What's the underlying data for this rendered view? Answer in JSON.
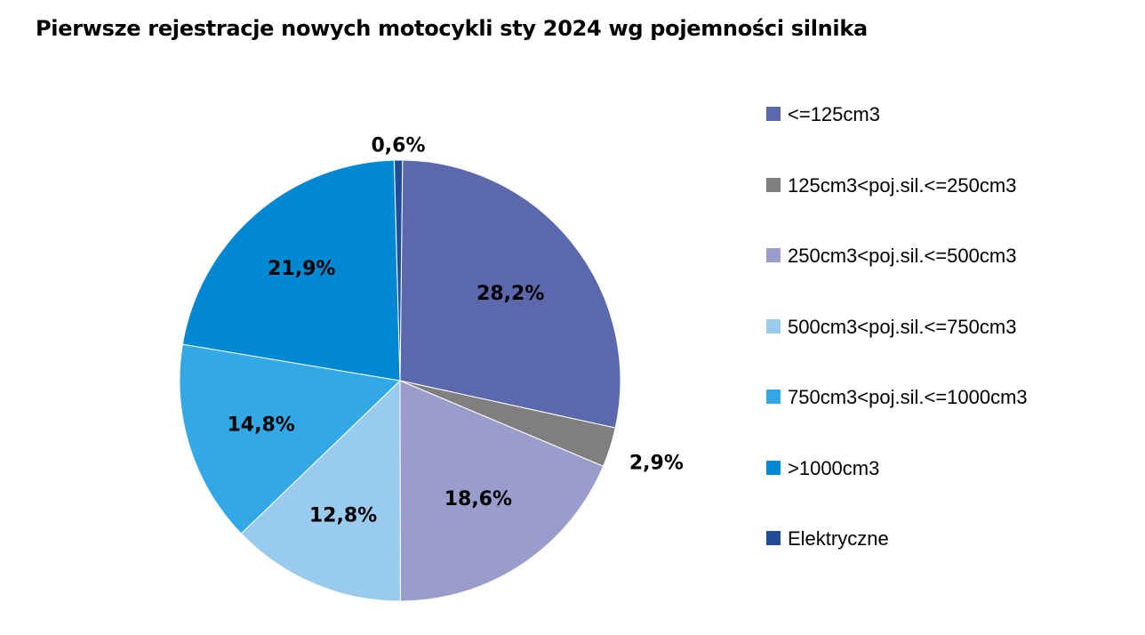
{
  "chart_data": {
    "type": "pie",
    "title": "Pierwsze rejestracje nowych motocykli sty 2024 wg pojemności silnika",
    "categories": [
      "<=125cm3",
      "125cm3<poj.sil.<=250cm3",
      "250cm3<poj.sil.<=500cm3",
      "500cm3<poj.sil.<=750cm3",
      "750cm3<poj.sil.<=1000cm3",
      ">1000cm3",
      "Elektryczne"
    ],
    "values": [
      28.2,
      2.9,
      18.6,
      12.8,
      14.8,
      21.9,
      0.6
    ],
    "labels": [
      "28,2%",
      "2,9%",
      "18,6%",
      "12,8%",
      "14,8%",
      "21,9%",
      "0,6%"
    ],
    "colors": [
      "#5b68ab",
      "#7f7f7f",
      "#9a9dcc",
      "#99cbee",
      "#32a9e6",
      "#0089d2",
      "#1f4d99"
    ],
    "legend_position": "right"
  }
}
